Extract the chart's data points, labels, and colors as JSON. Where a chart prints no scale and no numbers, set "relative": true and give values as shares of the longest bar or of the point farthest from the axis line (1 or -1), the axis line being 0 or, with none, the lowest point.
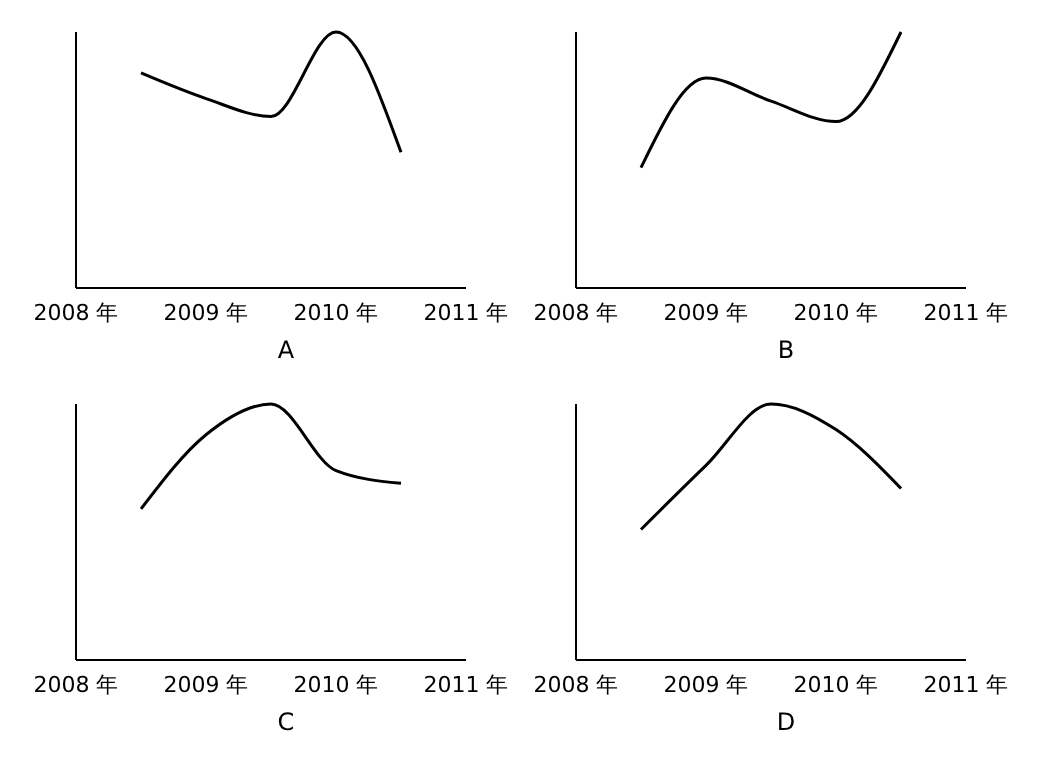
{
  "chart_data": [
    {
      "type": "line",
      "title": "A",
      "categories": [
        "2008 年",
        null,
        "2009 年",
        null,
        "2010 年",
        null,
        "2011 年"
      ],
      "values": [
        null,
        0.84,
        0.74,
        0.67,
        1,
        0.53,
        null
      ],
      "color": "#000000",
      "relative": true
    },
    {
      "type": "line",
      "title": "B",
      "categories": [
        "2008 年",
        null,
        "2009 年",
        null,
        "2010 年",
        null,
        "2011 年"
      ],
      "values": [
        null,
        0.47,
        0.82,
        0.73,
        0.65,
        1,
        null
      ],
      "color": "#000000",
      "relative": true
    },
    {
      "type": "line",
      "title": "C",
      "categories": [
        "2008 年",
        null,
        "2009 年",
        null,
        "2010 年",
        null,
        "2011 年"
      ],
      "values": [
        null,
        0.59,
        0.88,
        1,
        0.74,
        0.69,
        null
      ],
      "color": "#000000",
      "relative": true
    },
    {
      "type": "line",
      "title": "D",
      "categories": [
        "2008 年",
        null,
        "2009 年",
        null,
        "2010 年",
        null,
        "2011 年"
      ],
      "values": [
        null,
        0.51,
        0.76,
        1,
        0.9,
        0.67,
        null
      ],
      "color": "#000000",
      "relative": true
    }
  ]
}
